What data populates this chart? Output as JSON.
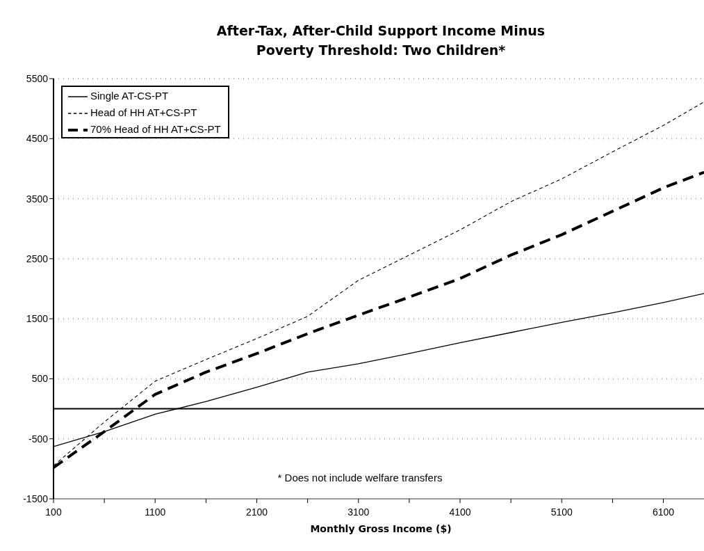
{
  "chart_data": {
    "type": "line",
    "title": "After-Tax, After-Child Support Income Minus\nPoverty Threshold: Two Children*",
    "xlabel": "Monthly Gross Income ($)",
    "x": [
      100,
      600,
      1100,
      1600,
      2100,
      2600,
      3100,
      3600,
      4100,
      4600,
      5100,
      5600,
      6100,
      6500
    ],
    "series": [
      {
        "name": "Single AT-CS-PT",
        "color": "#000000",
        "line_style": "solid",
        "values": [
          -630,
          -380,
          -90,
          120,
          360,
          610,
          750,
          920,
          1100,
          1270,
          1440,
          1600,
          1770,
          1920
        ]
      },
      {
        "name": "Head of HH AT+CS-PT",
        "color": "#000000",
        "line_style": "dotted",
        "values": [
          -950,
          -220,
          460,
          820,
          1170,
          1540,
          2140,
          2560,
          2980,
          3450,
          3830,
          4280,
          4720,
          5110
        ]
      },
      {
        "name": "70% Head of HH AT+CS-PT",
        "color": "#000000",
        "line_style": "dashed",
        "values": [
          -980,
          -380,
          240,
          610,
          920,
          1250,
          1560,
          1860,
          2170,
          2560,
          2900,
          3290,
          3680,
          3940
        ]
      }
    ],
    "xlim": [
      100,
      6500
    ],
    "xticks": [
      100,
      {
        "value": 600,
        "label": null
      },
      1100,
      {
        "value": 1600,
        "label": null
      },
      2100,
      {
        "value": 2600,
        "label": null
      },
      3100,
      {
        "value": 3600,
        "label": null
      },
      4100,
      {
        "value": 4600,
        "label": null
      },
      5100,
      {
        "value": 5600,
        "label": null
      },
      6100
    ],
    "ylim": [
      -1500,
      5500
    ],
    "yticks": [
      -1500,
      -500,
      500,
      1500,
      2500,
      3500,
      4500,
      5500
    ],
    "grid": "y",
    "legend": "top left",
    "marker": "none",
    "ref_lines": [
      {
        "axis": "y",
        "value": 0,
        "label": null,
        "color": "#000000"
      }
    ],
    "annotations": [
      "* Does not include welfare transfers"
    ]
  }
}
